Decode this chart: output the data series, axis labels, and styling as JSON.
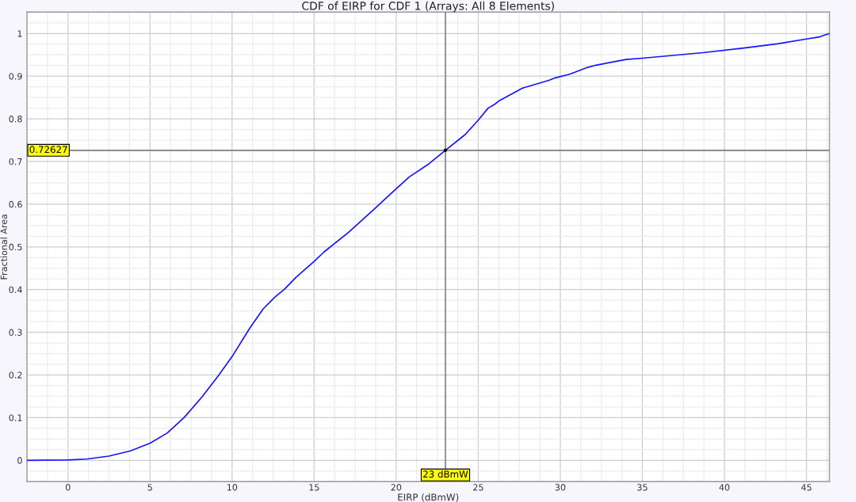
{
  "chart_data": {
    "type": "line",
    "title": "CDF of EIRP for CDF 1 (Arrays: All 8 Elements)",
    "xlabel": "EIRP (dBmW)",
    "ylabel": "Fractional Area",
    "xlim": [
      -2.5,
      46.4
    ],
    "ylim": [
      -0.05,
      1.05
    ],
    "xticks": [
      0,
      5,
      10,
      15,
      20,
      25,
      30,
      35,
      40,
      45
    ],
    "yticks": [
      0,
      0.1,
      0.2,
      0.3,
      0.4,
      0.5,
      0.6,
      0.7,
      0.8,
      0.9,
      1
    ],
    "grid": true,
    "series": [
      {
        "color": "#1414ff",
        "x": [
          -2.5,
          0,
          1.15,
          2.5,
          3.8,
          5.0,
          6.05,
          7.1,
          8.2,
          9.2,
          10.0,
          11.1,
          11.9,
          12.6,
          13.2,
          13.9,
          15.0,
          15.6,
          17.1,
          18.7,
          20.0,
          20.8,
          21.9,
          23.0,
          24.2,
          25.0,
          25.6,
          26.0,
          26.3,
          27.7,
          29.3,
          29.7,
          30.6,
          31.7,
          32.1,
          34.0,
          35.0,
          38.7,
          41.2,
          43.3,
          45.0,
          45.8,
          46.4
        ],
        "values": [
          0,
          0.001,
          0.003,
          0.01,
          0.022,
          0.04,
          0.064,
          0.101,
          0.15,
          0.2,
          0.243,
          0.311,
          0.355,
          0.382,
          0.401,
          0.429,
          0.466,
          0.488,
          0.534,
          0.59,
          0.636,
          0.664,
          0.692,
          0.726,
          0.763,
          0.797,
          0.825,
          0.834,
          0.843,
          0.872,
          0.89,
          0.896,
          0.905,
          0.921,
          0.925,
          0.939,
          0.942,
          0.955,
          0.966,
          0.976,
          0.987,
          0.992,
          1.0
        ]
      },
      {
        "type": "scatter",
        "color": "#000000",
        "marker": "circle",
        "x": [
          23
        ],
        "values": [
          0.72627
        ]
      }
    ],
    "ref_lines": [
      {
        "axis": "x",
        "value": 23,
        "label": "23 dBmW",
        "color": "#808080"
      },
      {
        "axis": "y",
        "value": 0.72627,
        "label": "0.72627",
        "color": "#808080"
      }
    ]
  }
}
